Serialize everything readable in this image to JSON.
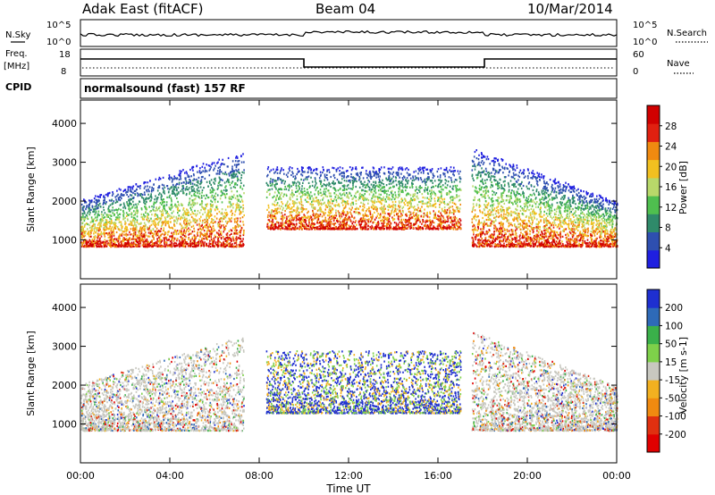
{
  "header": {
    "station": "Adak East (fitACF)",
    "beam": "Beam 04",
    "date": "10/Mar/2014"
  },
  "strip_nsky": {
    "left_label": "N.Sky",
    "right_label": "N.Search",
    "ticks_left": [
      "10^5",
      "10^0"
    ],
    "ticks_right": [
      "10^5",
      "10^0"
    ]
  },
  "strip_freq": {
    "left_label_top": "Freq.",
    "left_label_bottom": "[MHz]",
    "right_label": "Nave",
    "ticks_left": [
      "18",
      "8"
    ],
    "ticks_right": [
      "60",
      "0"
    ],
    "cpid_label": "CPID",
    "cpid_value": "normalsound (fast) 157 RF"
  },
  "chart_data": [
    {
      "type": "heatmap",
      "name": "power",
      "ylabel": "Slant Range [km]",
      "ylim": [
        0,
        4600
      ],
      "yticks": [
        "1000",
        "2000",
        "3000",
        "4000"
      ],
      "colorbar_label": "Power [dB]",
      "colorbar_ticks": [
        "4",
        "8",
        "12",
        "16",
        "20",
        "24",
        "28"
      ],
      "colors": [
        "#1f1fe0",
        "#2e4fb0",
        "#2f8a6a",
        "#4fbf4f",
        "#b8d86a",
        "#f2c020",
        "#f08a10",
        "#e02010",
        "#d00000"
      ],
      "bands": [
        {
          "x_start": 0.0,
          "x_end": 7.3,
          "range_start": 850,
          "range_end": 3300
        },
        {
          "x_start": 8.3,
          "x_end": 17.0,
          "range_start": 1300,
          "range_end": 2900
        },
        {
          "x_start": 17.5,
          "x_end": 24.0,
          "range_start": 850,
          "range_end": 3400
        }
      ]
    },
    {
      "type": "heatmap",
      "name": "velocity",
      "ylabel": "Slant Range [km]",
      "ylim": [
        0,
        4600
      ],
      "yticks": [
        "1000",
        "2000",
        "3000",
        "4000"
      ],
      "colorbar_label": "Velocity [m s-1]",
      "colorbar_ticks": [
        "200",
        "100",
        "50",
        "15",
        "-15",
        "-50",
        "-100",
        "-200"
      ],
      "colors": [
        "#1e2fd0",
        "#2e6ab8",
        "#3ab04a",
        "#7ed04a",
        "#c8c8c0",
        "#f2b020",
        "#f08a10",
        "#e03010",
        "#e00000"
      ],
      "bands": [
        {
          "x_start": 0.0,
          "x_end": 7.3,
          "range_start": 850,
          "range_end": 3300
        },
        {
          "x_start": 8.3,
          "x_end": 17.0,
          "range_start": 1300,
          "range_end": 2900
        },
        {
          "x_start": 17.5,
          "x_end": 24.0,
          "range_start": 850,
          "range_end": 3400
        }
      ]
    }
  ],
  "x_axis": {
    "label": "Time UT",
    "xlim": [
      0,
      24
    ],
    "ticks": [
      "00:00",
      "04:00",
      "08:00",
      "12:00",
      "16:00",
      "20:00",
      "00:00"
    ]
  }
}
